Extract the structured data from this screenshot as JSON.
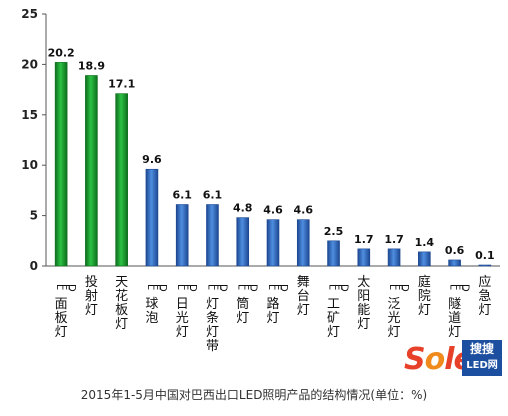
{
  "chart_data": {
    "type": "bar",
    "categories": [
      "LED面板灯",
      "投射灯",
      "天花板灯",
      "LED球泡",
      "LED日光灯",
      "LED灯条灯带",
      "LED筒灯",
      "LED路灯",
      "舞台灯",
      "LED工矿灯",
      "太阳能灯",
      "LED泛光灯",
      "庭院灯",
      "LED隧道灯",
      "应急灯"
    ],
    "values": [
      20.2,
      18.9,
      17.1,
      9.6,
      6.1,
      6.1,
      4.8,
      4.6,
      4.6,
      2.5,
      1.7,
      1.7,
      1.4,
      0.6,
      0.1
    ],
    "value_labels": [
      "20.2",
      "18.9",
      "17.1",
      "9.6",
      "6.1",
      "6.1",
      "4.8",
      "4.6",
      "4.6",
      "2.5",
      "1.7",
      "1.7",
      "1.4",
      "0.6",
      "0.1"
    ],
    "ylim": [
      0,
      25
    ],
    "yticks": [
      0,
      5,
      10,
      15,
      20,
      25
    ],
    "ytick_labels": [
      "0",
      "5",
      "10",
      "15",
      "20",
      "25"
    ],
    "title": "",
    "xlabel": "",
    "ylabel": "",
    "grid": false,
    "legend": "none",
    "colors": {
      "highlight": "#1fa832",
      "highlight_dark": "#0d6d1c",
      "base": "#3a72c4",
      "base_dark": "#1c4791"
    },
    "highlight_count": 3,
    "caption": "2015年1-5月中国对巴西出口LED照明产品的结构情况(单位：%)"
  },
  "watermark": {
    "brand_s": "S",
    "brand_o": "o",
    "brand_led": "led",
    "box_line1": "搜搜",
    "box_line2": "LED网"
  }
}
